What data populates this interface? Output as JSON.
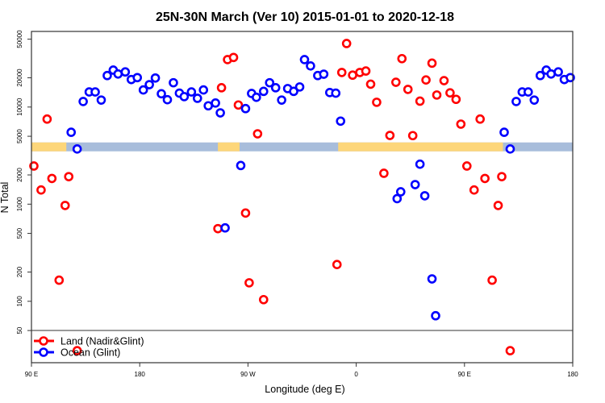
{
  "chart_data": {
    "type": "scatter",
    "title": "25N-30N March (Ver 10)   2015-01-01 to 2020-12-18",
    "xlabel": "Longitude (deg E)",
    "ylabel": "N Total",
    "x_unit_note": "longitude unwrapped eastward from 90 E",
    "xlim": [
      90,
      540
    ],
    "ylim": [
      23,
      60000
    ],
    "y_scale": "log",
    "grid": false,
    "legend_position": "bottom-left",
    "x_ticks": [
      {
        "value": 90,
        "label": "90 E"
      },
      {
        "value": 180,
        "label": "180"
      },
      {
        "value": 270,
        "label": "90 W"
      },
      {
        "value": 360,
        "label": "0"
      },
      {
        "value": 450,
        "label": "90 E"
      },
      {
        "value": 540,
        "label": "180"
      }
    ],
    "y_ticks": [
      {
        "value": 50000,
        "label": "50000"
      },
      {
        "value": 20000,
        "label": "20000"
      },
      {
        "value": 10000,
        "label": "10000"
      },
      {
        "value": 5000,
        "label": "5000"
      },
      {
        "value": 2000,
        "label": "2000"
      },
      {
        "value": 1000,
        "label": "1000"
      },
      {
        "value": 500,
        "label": "500"
      },
      {
        "value": 200,
        "label": "200"
      },
      {
        "value": 100,
        "label": "100"
      },
      {
        "value": 50,
        "label": "50"
      }
    ],
    "land_mask": {
      "band": [
        3500,
        4320
      ],
      "land_color": "#fdd67a",
      "ocean_color": "#a8bddb",
      "land_ranges": [
        [
          90,
          119
        ],
        [
          245,
          263
        ],
        [
          345,
          482
        ]
      ]
    },
    "series": [
      {
        "name": "Land (Nadir&Glint)",
        "color": "#ff0000",
        "points": [
          [
            92,
            2470
          ],
          [
            98,
            1400
          ],
          [
            103,
            7520
          ],
          [
            107,
            1840
          ],
          [
            113,
            165
          ],
          [
            118,
            970
          ],
          [
            121,
            1920
          ],
          [
            128,
            31
          ],
          [
            245,
            560
          ],
          [
            248,
            15800
          ],
          [
            253,
            30800
          ],
          [
            258,
            32400
          ],
          [
            262,
            10500
          ],
          [
            268,
            810
          ],
          [
            271,
            155
          ],
          [
            278,
            5300
          ],
          [
            283,
            104
          ],
          [
            344,
            239
          ],
          [
            348,
            22700
          ],
          [
            352,
            45100
          ],
          [
            357,
            21300
          ],
          [
            363,
            22700
          ],
          [
            368,
            23500
          ],
          [
            372,
            17200
          ],
          [
            377,
            11200
          ],
          [
            383,
            2080
          ],
          [
            388,
            5100
          ],
          [
            393,
            18000
          ],
          [
            398,
            31500
          ],
          [
            403,
            15200
          ],
          [
            407,
            5080
          ],
          [
            413,
            11500
          ],
          [
            418,
            19000
          ],
          [
            423,
            28300
          ],
          [
            427,
            13300
          ],
          [
            433,
            18700
          ],
          [
            438,
            14000
          ],
          [
            443,
            12000
          ],
          [
            447,
            6670
          ],
          [
            452,
            2470
          ],
          [
            458,
            1400
          ],
          [
            463,
            7520
          ],
          [
            467,
            1840
          ],
          [
            473,
            165
          ],
          [
            478,
            970
          ],
          [
            481,
            1920
          ],
          [
            488,
            31
          ]
        ]
      },
      {
        "name": "Ocean (Glint)",
        "color": "#0000ff",
        "points": [
          [
            123,
            5500
          ],
          [
            128,
            3700
          ],
          [
            133,
            11400
          ],
          [
            138,
            14300
          ],
          [
            143,
            14300
          ],
          [
            148,
            11800
          ],
          [
            153,
            21100
          ],
          [
            158,
            24000
          ],
          [
            162,
            21900
          ],
          [
            168,
            23000
          ],
          [
            173,
            19200
          ],
          [
            178,
            20100
          ],
          [
            183,
            15000
          ],
          [
            188,
            17000
          ],
          [
            193,
            19900
          ],
          [
            198,
            13700
          ],
          [
            203,
            11900
          ],
          [
            208,
            17800
          ],
          [
            213,
            13900
          ],
          [
            217,
            12800
          ],
          [
            223,
            14300
          ],
          [
            228,
            12300
          ],
          [
            233,
            15000
          ],
          [
            237,
            10300
          ],
          [
            243,
            11000
          ],
          [
            247,
            8710
          ],
          [
            251,
            570
          ],
          [
            264,
            2500
          ],
          [
            268,
            9640
          ],
          [
            273,
            13800
          ],
          [
            277,
            12600
          ],
          [
            283,
            14500
          ],
          [
            288,
            17800
          ],
          [
            293,
            15800
          ],
          [
            298,
            11800
          ],
          [
            303,
            15500
          ],
          [
            308,
            14500
          ],
          [
            313,
            16100
          ],
          [
            317,
            30800
          ],
          [
            322,
            26500
          ],
          [
            328,
            21100
          ],
          [
            333,
            21800
          ],
          [
            338,
            14100
          ],
          [
            343,
            13900
          ],
          [
            347,
            7160
          ],
          [
            394,
            1140
          ],
          [
            397,
            1340
          ],
          [
            409,
            1590
          ],
          [
            413,
            2580
          ],
          [
            417,
            1220
          ],
          [
            423,
            170
          ],
          [
            426,
            71
          ],
          [
            483,
            5500
          ],
          [
            488,
            3700
          ],
          [
            493,
            11400
          ],
          [
            498,
            14300
          ],
          [
            503,
            14300
          ],
          [
            508,
            11800
          ],
          [
            513,
            21100
          ],
          [
            518,
            24000
          ],
          [
            522,
            21900
          ],
          [
            528,
            23000
          ],
          [
            533,
            19200
          ],
          [
            538,
            20100
          ]
        ]
      }
    ]
  }
}
